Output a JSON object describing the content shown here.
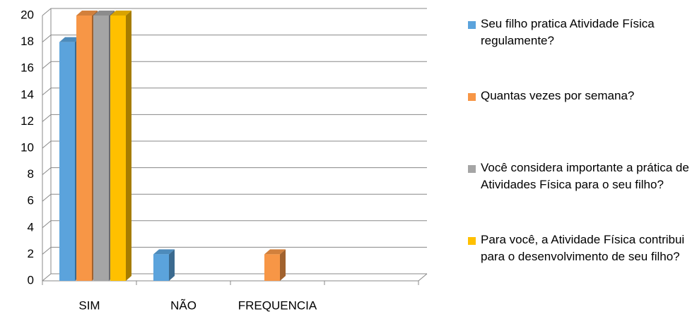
{
  "chart_data": {
    "type": "bar3d",
    "categories": [
      "SIM",
      "NÃO",
      "FREQUENCIA",
      null
    ],
    "series": [
      {
        "name": "Seu filho pratica Atividade Física regulamente?",
        "color": "#5ba3dc",
        "values": [
          18,
          2,
          null,
          null
        ]
      },
      {
        "name": "Quantas vezes por semana?",
        "color": "#f79646",
        "values": [
          20,
          null,
          2,
          null
        ]
      },
      {
        "name": "Você considera importante a prática de Atividades Física para o seu filho?",
        "color": "#a5a5a5",
        "values": [
          20,
          null,
          null,
          null
        ]
      },
      {
        "name": "Para você, a Atividade Física contribui para o desenvolvimento de seu filho?",
        "color": "#ffc000",
        "values": [
          20,
          null,
          null,
          null
        ]
      }
    ],
    "ylim": [
      0,
      20
    ],
    "yticks": [
      0,
      2,
      4,
      6,
      8,
      10,
      12,
      14,
      16,
      18,
      20
    ],
    "grid": true,
    "legend": "right"
  }
}
